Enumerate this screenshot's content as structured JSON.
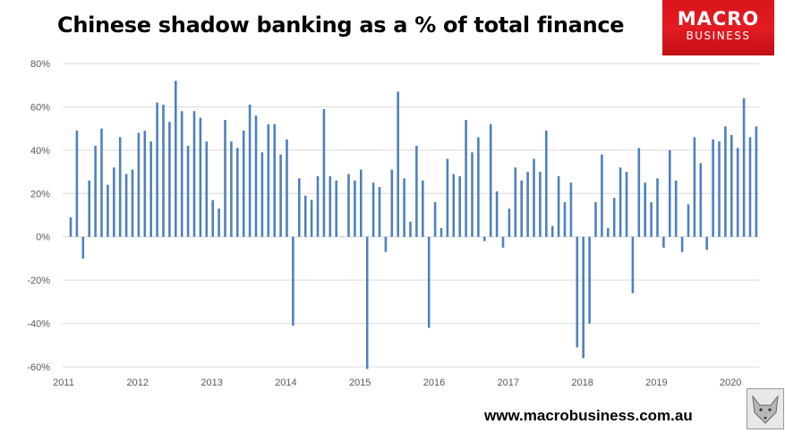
{
  "header": {
    "title": "Chinese shadow banking as a % of total finance",
    "logo_line1": "MACRO",
    "logo_line2": "BUSINESS"
  },
  "footer": {
    "url": "www.macrobusiness.com.au"
  },
  "colors": {
    "bar": "#4f81bd",
    "logo_bg": "#e31b22"
  },
  "chart_data": {
    "type": "bar",
    "title": "Chinese shadow banking as a % of total finance",
    "xlabel": "",
    "ylabel": "",
    "ylim": [
      -60,
      80
    ],
    "yticks": [
      -60,
      -40,
      -20,
      0,
      20,
      40,
      60,
      80
    ],
    "ytick_labels": [
      "-60%",
      "-40%",
      "-20%",
      "0%",
      "20%",
      "40%",
      "60%",
      "80%"
    ],
    "x_year_labels": [
      "2011",
      "2012",
      "2013",
      "2014",
      "2015",
      "2016",
      "2017",
      "2018",
      "2019",
      "2020"
    ],
    "frequency": "monthly",
    "start": "2011-01",
    "grid": true,
    "values": [
      9,
      49,
      -10,
      26,
      42,
      50,
      24,
      32,
      46,
      29,
      31,
      48,
      49,
      44,
      62,
      61,
      53,
      72,
      58,
      42,
      58,
      55,
      44,
      17,
      13,
      54,
      44,
      41,
      49,
      61,
      56,
      39,
      52,
      52,
      38,
      45,
      -41,
      27,
      19,
      17,
      28,
      59,
      28,
      26,
      0,
      29,
      26,
      31,
      -61,
      25,
      23,
      -7,
      31,
      67,
      27,
      7,
      42,
      26,
      -42,
      16,
      4,
      36,
      29,
      28,
      54,
      39,
      46,
      -2,
      52,
      21,
      -5,
      13,
      32,
      26,
      30,
      36,
      30,
      49,
      5,
      28,
      16,
      25,
      -51,
      -56,
      -40,
      16,
      38,
      4,
      18,
      32,
      30,
      -26,
      41,
      25,
      16,
      27,
      -5,
      40,
      26,
      -7,
      15,
      46,
      34,
      -6,
      45,
      44,
      51,
      47,
      41,
      64,
      46,
      51
    ]
  }
}
